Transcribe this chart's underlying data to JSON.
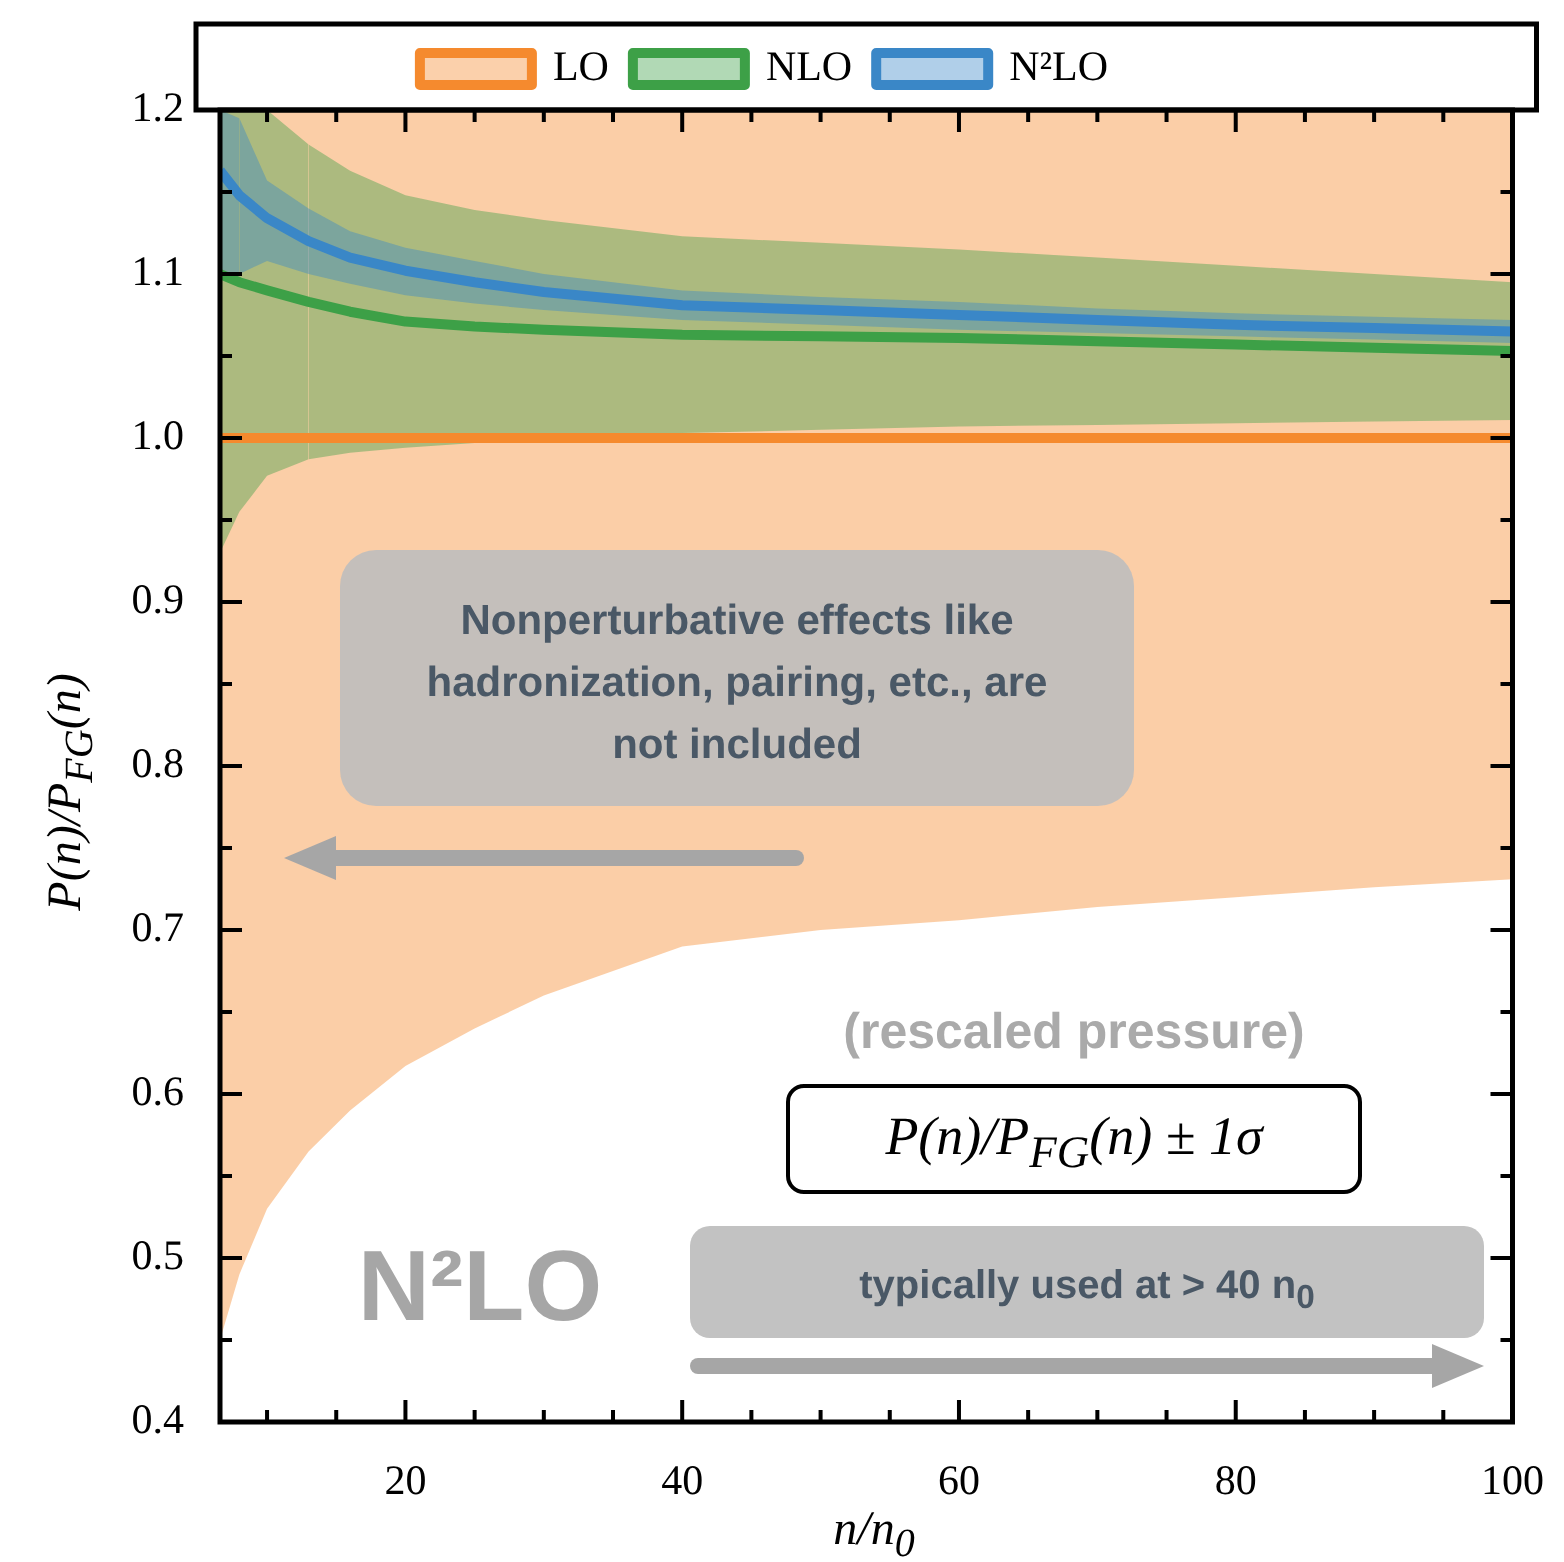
{
  "chart_data": {
    "type": "line",
    "xlabel": "n/n$_{0}$",
    "ylabel": "P(n)/P$_{FG}$(n)",
    "x": [
      6.6,
      8,
      10,
      13,
      16,
      20,
      25,
      30,
      40,
      50,
      60,
      70,
      80,
      90,
      100
    ],
    "series": [
      {
        "name": "LO",
        "color": "#f58a2e",
        "values": [
          1,
          1,
          1,
          1,
          1,
          1,
          1,
          1,
          1,
          1,
          1,
          1,
          1,
          1,
          1
        ],
        "lower": [
          0.45,
          0.49,
          0.53,
          0.565,
          0.59,
          0.617,
          0.64,
          0.66,
          0.69,
          0.7,
          0.706,
          0.714,
          0.72,
          0.726,
          0.731
        ],
        "upper": [
          1.2,
          1.2,
          1.2,
          1.2,
          1.2,
          1.2,
          1.2,
          1.2,
          1.2,
          1.2,
          1.2,
          1.2,
          1.2,
          1.2,
          1.2
        ]
      },
      {
        "name": "NLO",
        "color": "#3da047",
        "values": [
          1.1,
          1.095,
          1.09,
          1.083,
          1.077,
          1.071,
          1.068,
          1.066,
          1.063,
          1.062,
          1.061,
          1.059,
          1.057,
          1.055,
          1.053
        ],
        "lower": [
          0.93,
          0.955,
          0.977,
          0.987,
          0.991,
          0.994,
          0.997,
          0.999,
          1.003,
          1.005,
          1.007,
          1.008,
          1.009,
          1.01,
          1.011
        ],
        "upper": [
          1.2,
          1.2,
          1.2,
          1.179,
          1.163,
          1.148,
          1.139,
          1.133,
          1.123,
          1.119,
          1.115,
          1.11,
          1.105,
          1.1,
          1.095
        ]
      },
      {
        "name": "N²LO",
        "color": "#3a87c7",
        "values": [
          1.163,
          1.148,
          1.134,
          1.12,
          1.11,
          1.102,
          1.095,
          1.089,
          1.081,
          1.078,
          1.075,
          1.072,
          1.069,
          1.067,
          1.065
        ],
        "lower": [
          1.1,
          1.1,
          1.108,
          1.1,
          1.094,
          1.087,
          1.082,
          1.078,
          1.072,
          1.069,
          1.066,
          1.064,
          1.062,
          1.06,
          1.058
        ],
        "upper": [
          1.2,
          1.195,
          1.157,
          1.14,
          1.126,
          1.116,
          1.108,
          1.1,
          1.09,
          1.086,
          1.083,
          1.079,
          1.076,
          1.074,
          1.072
        ]
      }
    ],
    "xlim": [
      6.6,
      100
    ],
    "xticks": [
      {
        "value": 10,
        "label": null
      },
      {
        "value": 15,
        "label": null
      },
      20,
      {
        "value": 25,
        "label": null
      },
      {
        "value": 30,
        "label": null
      },
      {
        "value": 35,
        "label": null
      },
      40,
      {
        "value": 45,
        "label": null
      },
      {
        "value": 50,
        "label": null
      },
      {
        "value": 55,
        "label": null
      },
      60,
      {
        "value": 65,
        "label": null
      },
      {
        "value": 70,
        "label": null
      },
      {
        "value": 75,
        "label": null
      },
      80,
      {
        "value": 85,
        "label": null
      },
      {
        "value": 90,
        "label": null
      },
      {
        "value": 95,
        "label": null
      },
      100
    ],
    "ylim": [
      0.4,
      1.2
    ],
    "yticks": [
      0.4,
      {
        "value": 0.45,
        "label": null
      },
      0.5,
      {
        "value": 0.55,
        "label": null
      },
      0.6,
      {
        "value": 0.65,
        "label": null
      },
      0.7,
      {
        "value": 0.75,
        "label": null
      },
      0.8,
      {
        "value": 0.85,
        "label": null
      },
      0.9,
      {
        "value": 0.95,
        "label": null
      },
      {
        "value": 1,
        "label": "1.0"
      },
      {
        "value": 1.05,
        "label": null
      },
      1.1,
      {
        "value": 1.15,
        "label": null
      },
      1.2
    ],
    "grid": false,
    "legend": "top",
    "marker": "none",
    "line_style": "solid",
    "annotations": [
      "Nonperturbative effects like hadronization, pairing, etc., are not included",
      "(rescaled pressure)",
      "P(n)/P$_{FG}$(n) ± 1σ",
      "typically used at > 40 n$_{0}$",
      "N²LO"
    ]
  }
}
